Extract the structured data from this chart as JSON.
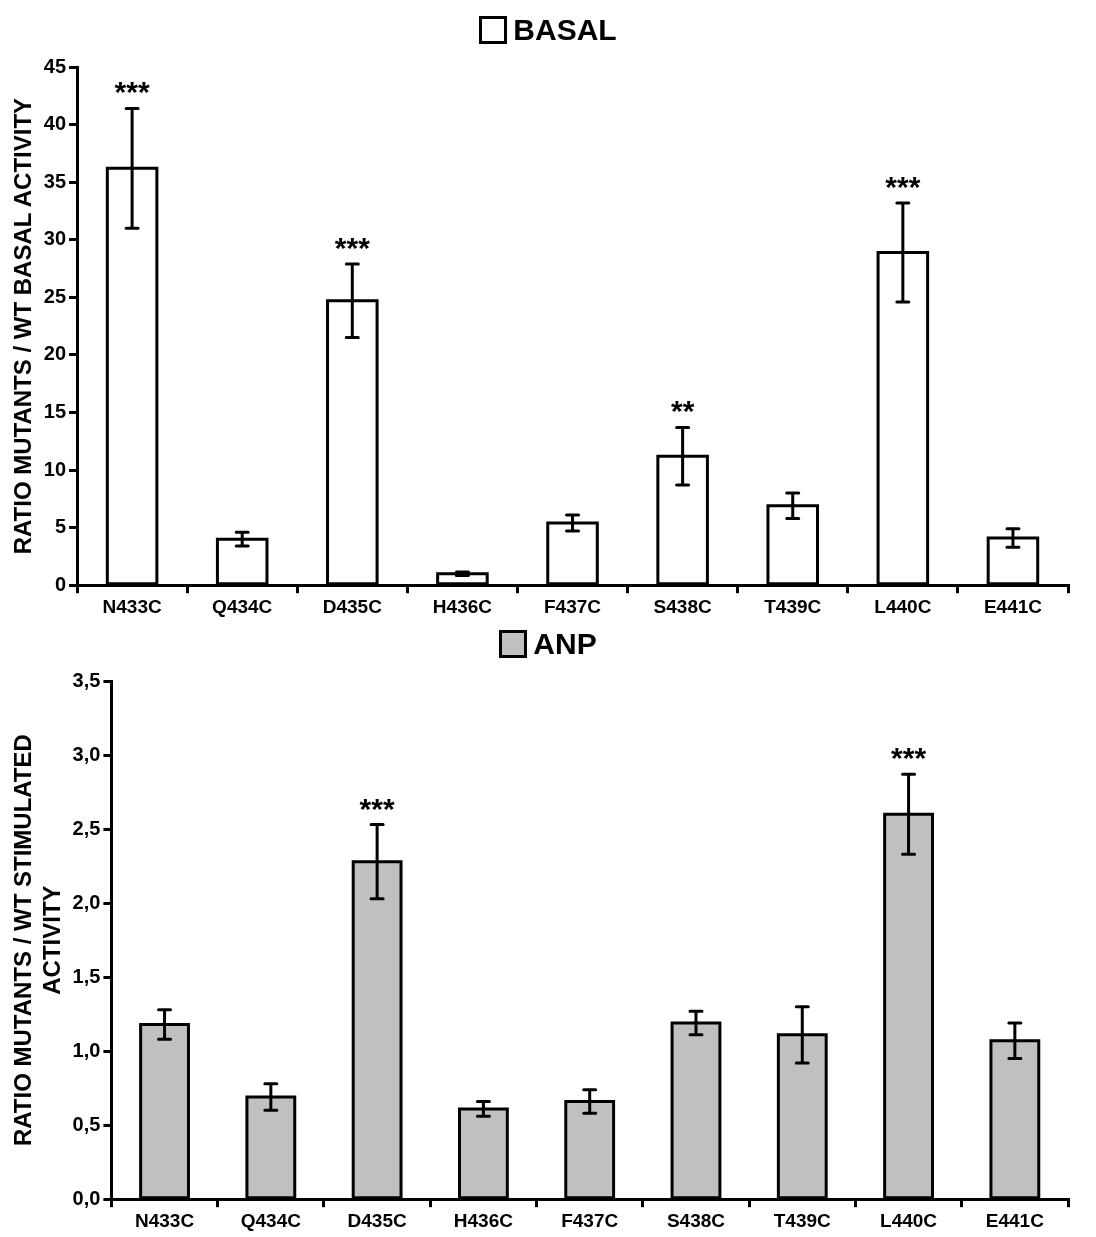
{
  "chart_data": [
    {
      "type": "bar",
      "ylabel": "RATIO MUTANTS / WT BASAL ACTIVITY",
      "categories": [
        "N433C",
        "Q434C",
        "D435C",
        "H436C",
        "F437C",
        "S438C",
        "T439C",
        "L440C",
        "E441C"
      ],
      "series": [
        {
          "name": "BASAL",
          "color": "#ffffff",
          "values": [
            36.2,
            4.0,
            24.7,
            1.0,
            5.4,
            11.2,
            6.9,
            28.9,
            4.1
          ],
          "errors": [
            5.2,
            0.6,
            3.2,
            0.15,
            0.7,
            2.5,
            1.1,
            4.3,
            0.8
          ],
          "value_labels": [
            "***",
            null,
            "***",
            null,
            null,
            "**",
            null,
            "***",
            null
          ]
        }
      ],
      "ylim": [
        0,
        45
      ],
      "yticks": [
        0,
        5,
        10,
        15,
        20,
        25,
        30,
        35,
        40,
        45
      ],
      "grid": false,
      "legend": "top"
    },
    {
      "type": "bar",
      "ylabel": "RATIO MUTANTS / WT STIMULATED ACTIVITY",
      "categories": [
        "N433C",
        "Q434C",
        "D435C",
        "H436C",
        "F437C",
        "S438C",
        "T439C",
        "L440C",
        "E441C"
      ],
      "series": [
        {
          "name": "ANP",
          "color": "#c0c0c0",
          "values": [
            1.18,
            0.69,
            2.28,
            0.61,
            0.66,
            1.19,
            1.11,
            2.6,
            1.07
          ],
          "errors": [
            0.1,
            0.09,
            0.25,
            0.05,
            0.08,
            0.08,
            0.19,
            0.27,
            0.12
          ],
          "value_labels": [
            null,
            null,
            "***",
            null,
            null,
            null,
            null,
            "***",
            null
          ]
        }
      ],
      "ylim": [
        0,
        3.5
      ],
      "yticks": [
        {
          "value": 0,
          "label": "0,0"
        },
        {
          "value": 0.5,
          "label": "0,5"
        },
        {
          "value": 1,
          "label": "1,0"
        },
        {
          "value": 1.5,
          "label": "1,5"
        },
        {
          "value": 2,
          "label": "2,0"
        },
        {
          "value": 2.5,
          "label": "2,5"
        },
        {
          "value": 3,
          "label": "3,0"
        },
        {
          "value": 3.5,
          "label": "3,5"
        }
      ],
      "grid": false,
      "legend": "top"
    }
  ]
}
